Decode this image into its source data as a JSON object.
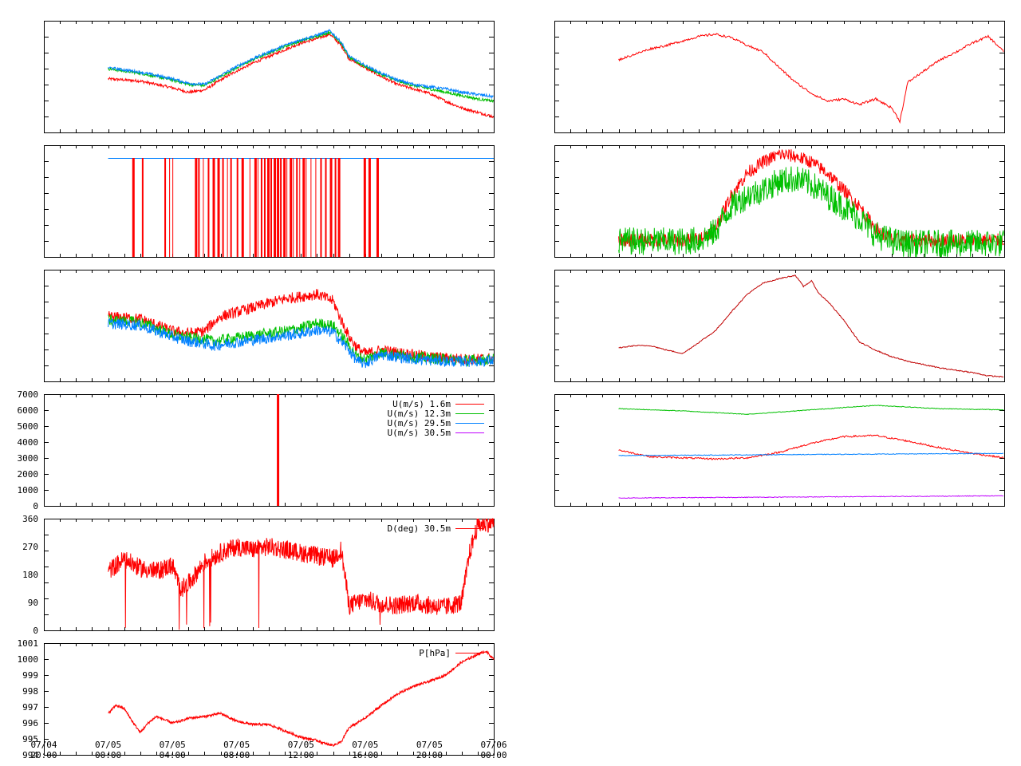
{
  "x_axis": {
    "tick_labels": [
      [
        "07/04",
        "20:00"
      ],
      [
        "07/05",
        "00:00"
      ],
      [
        "07/05",
        "04:00"
      ],
      [
        "07/05",
        "08:00"
      ],
      [
        "07/05",
        "12:00"
      ],
      [
        "07/05",
        "16:00"
      ],
      [
        "07/05",
        "20:00"
      ],
      [
        "07/06",
        "00:00"
      ]
    ]
  },
  "colors": {
    "red": "#ff0000",
    "green": "#00c000",
    "blue": "#0080ff",
    "purple": "#c000ff",
    "darkred": "#c00000",
    "background": "#ffffff",
    "frame": "#000000"
  },
  "chart_data": [
    {
      "panel": "left-1",
      "type": "line",
      "series": [
        {
          "color": "red",
          "t": [
            0,
            2,
            4,
            5,
            6,
            7,
            8,
            9,
            10,
            11,
            12,
            13,
            13.8,
            14.5,
            15,
            16,
            17,
            18,
            19,
            20,
            21,
            22,
            23,
            24
          ],
          "v": [
            0.48,
            0.46,
            0.4,
            0.36,
            0.38,
            0.47,
            0.55,
            0.62,
            0.68,
            0.74,
            0.8,
            0.84,
            0.88,
            0.78,
            0.66,
            0.58,
            0.5,
            0.43,
            0.39,
            0.35,
            0.28,
            0.22,
            0.18,
            0.14
          ]
        },
        {
          "color": "green",
          "t": [
            0,
            2,
            4,
            5,
            6,
            7,
            8,
            9,
            10,
            11,
            12,
            13,
            13.8,
            14.5,
            15,
            16,
            17,
            18,
            19,
            20,
            21,
            22,
            23,
            24
          ],
          "v": [
            0.57,
            0.53,
            0.47,
            0.43,
            0.42,
            0.5,
            0.58,
            0.65,
            0.71,
            0.77,
            0.82,
            0.86,
            0.9,
            0.8,
            0.67,
            0.59,
            0.52,
            0.46,
            0.42,
            0.39,
            0.36,
            0.33,
            0.3,
            0.28
          ]
        },
        {
          "color": "blue",
          "t": [
            0,
            2,
            4,
            5,
            6,
            7,
            8,
            9,
            10,
            11,
            12,
            13,
            13.8,
            14.5,
            15,
            16,
            17,
            18,
            19,
            20,
            21,
            22,
            23,
            24
          ],
          "v": [
            0.58,
            0.54,
            0.48,
            0.44,
            0.43,
            0.51,
            0.59,
            0.66,
            0.72,
            0.78,
            0.83,
            0.87,
            0.91,
            0.81,
            0.68,
            0.6,
            0.53,
            0.47,
            0.43,
            0.41,
            0.39,
            0.36,
            0.34,
            0.32
          ]
        }
      ]
    },
    {
      "panel": "left-2",
      "type": "line",
      "note_values": "binary 0/1 signal",
      "series": [
        {
          "color": "blue",
          "t": [
            0,
            24
          ],
          "v": [
            1,
            1
          ]
        },
        {
          "color": "red",
          "drops_at_hours": [
            1.5,
            2.1,
            3.5,
            3.8,
            4.0,
            5.4,
            5.6,
            5.9,
            6.2,
            6.5,
            6.8,
            7.1,
            7.4,
            7.6,
            8.0,
            8.3,
            8.8,
            9.1,
            9.3,
            9.5,
            9.7,
            9.9,
            10.1,
            10.3,
            10.5,
            10.7,
            10.9,
            11.1,
            11.3,
            11.5,
            11.7,
            11.9,
            12.1,
            12.3,
            12.6,
            12.9,
            13.2,
            13.5,
            13.8,
            14.1,
            14.3,
            15.9,
            16.2,
            16.7
          ]
        }
      ]
    },
    {
      "panel": "left-3",
      "type": "line",
      "series": [
        {
          "color": "red",
          "t": [
            0,
            2,
            4,
            5,
            6,
            6.5,
            7,
            8,
            9,
            10,
            11,
            12,
            13,
            14,
            14.5,
            15,
            15.5,
            16,
            17,
            18,
            19,
            20,
            21,
            22,
            23,
            24
          ],
          "v": [
            0.58,
            0.56,
            0.45,
            0.43,
            0.45,
            0.52,
            0.58,
            0.62,
            0.66,
            0.7,
            0.74,
            0.76,
            0.78,
            0.72,
            0.55,
            0.4,
            0.3,
            0.25,
            0.28,
            0.26,
            0.24,
            0.22,
            0.21,
            0.2,
            0.2,
            0.21
          ]
        },
        {
          "color": "green",
          "t": [
            0,
            2,
            4,
            5,
            6,
            6.5,
            7,
            8,
            9,
            10,
            11,
            12,
            13,
            14,
            14.5,
            15,
            15.5,
            16,
            17,
            18,
            19,
            20,
            21,
            22,
            23,
            24
          ],
          "v": [
            0.55,
            0.53,
            0.42,
            0.39,
            0.38,
            0.36,
            0.37,
            0.39,
            0.41,
            0.43,
            0.45,
            0.48,
            0.52,
            0.5,
            0.42,
            0.32,
            0.22,
            0.2,
            0.26,
            0.24,
            0.22,
            0.21,
            0.2,
            0.19,
            0.19,
            0.2
          ]
        },
        {
          "color": "blue",
          "t": [
            0,
            2,
            4,
            5,
            6,
            6.5,
            7,
            8,
            9,
            10,
            11,
            12,
            13,
            14,
            14.5,
            15,
            15.5,
            16,
            17,
            18,
            19,
            20,
            21,
            22,
            23,
            24
          ],
          "v": [
            0.52,
            0.5,
            0.4,
            0.36,
            0.34,
            0.32,
            0.33,
            0.35,
            0.37,
            0.39,
            0.41,
            0.43,
            0.46,
            0.44,
            0.36,
            0.28,
            0.18,
            0.16,
            0.24,
            0.22,
            0.2,
            0.19,
            0.18,
            0.18,
            0.18,
            0.19
          ]
        }
      ]
    },
    {
      "panel": "left-4",
      "type": "line",
      "yticks": [
        "0",
        "1000",
        "2000",
        "3000",
        "4000",
        "5000",
        "6000",
        "7000"
      ],
      "ylim": [
        0,
        7000
      ],
      "legend": [
        {
          "label": "U(m/s)  1.6m",
          "color": "red"
        },
        {
          "label": "U(m/s) 12.3m",
          "color": "green"
        },
        {
          "label": "U(m/s) 29.5m",
          "color": "blue"
        },
        {
          "label": "U(m/s) 30.5m",
          "color": "purple"
        }
      ],
      "legend_position": "top-right",
      "spike": {
        "t": 10.5,
        "v": 7000,
        "color": "red"
      }
    },
    {
      "panel": "left-5",
      "type": "line",
      "yticks": [
        "0",
        "90",
        "180",
        "270",
        "360"
      ],
      "ylim": [
        0,
        360
      ],
      "legend": [
        {
          "label": "D(deg)  30.5m",
          "color": "red"
        }
      ],
      "legend_position": "top-right",
      "series": [
        {
          "color": "red",
          "t": [
            0,
            1,
            2,
            3,
            4,
            4.5,
            5,
            6,
            7,
            8,
            9,
            10,
            11,
            12,
            13,
            14,
            14.5,
            15,
            16,
            17,
            18,
            19,
            20,
            21,
            22,
            22.5,
            23,
            24
          ],
          "v": [
            190,
            230,
            200,
            190,
            210,
            130,
            150,
            220,
            250,
            270,
            260,
            270,
            260,
            250,
            240,
            230,
            260,
            80,
            100,
            85,
            80,
            90,
            80,
            75,
            90,
            250,
            340,
            350
          ]
        }
      ]
    },
    {
      "panel": "left-6",
      "type": "line",
      "yticks": [
        "994",
        "995",
        "996",
        "997",
        "998",
        "999",
        "1000",
        "1001"
      ],
      "ylim": [
        994,
        1001
      ],
      "legend": [
        {
          "label": "P[hPa]",
          "color": "red"
        }
      ],
      "legend_position": "top-right",
      "series": [
        {
          "color": "red",
          "t": [
            0,
            0.5,
            1,
            1.5,
            2,
            2.5,
            3,
            3.5,
            4,
            4.5,
            5,
            6,
            7,
            8,
            9,
            10,
            11,
            12,
            13,
            13.5,
            14,
            14.5,
            15,
            16,
            17,
            18,
            19,
            20,
            21,
            22,
            23,
            23.5,
            24
          ],
          "v": [
            996.6,
            997.1,
            996.9,
            996.1,
            995.4,
            996.0,
            996.4,
            996.2,
            996.0,
            996.1,
            996.3,
            996.4,
            996.6,
            996.1,
            995.9,
            995.9,
            995.5,
            995.1,
            994.9,
            994.7,
            994.6,
            994.8,
            995.7,
            996.3,
            997.1,
            997.8,
            998.3,
            998.6,
            999.0,
            999.8,
            1000.3,
            1000.5,
            1000.0
          ]
        }
      ]
    },
    {
      "panel": "right-1",
      "type": "line",
      "series": [
        {
          "color": "red",
          "t": [
            0,
            1,
            2,
            3,
            4,
            5,
            6,
            7,
            8,
            9,
            10,
            11,
            12,
            13,
            14,
            15,
            16,
            17,
            17.5,
            18,
            19,
            20,
            21,
            22,
            23,
            24
          ],
          "v": [
            0.65,
            0.7,
            0.75,
            0.78,
            0.82,
            0.86,
            0.88,
            0.85,
            0.78,
            0.72,
            0.58,
            0.45,
            0.35,
            0.28,
            0.3,
            0.25,
            0.3,
            0.22,
            0.1,
            0.45,
            0.55,
            0.65,
            0.72,
            0.8,
            0.86,
            0.72
          ]
        }
      ]
    },
    {
      "panel": "right-2",
      "type": "line",
      "series": [
        {
          "color": "red",
          "t": [
            0,
            4,
            5,
            6,
            6.5,
            7,
            8,
            9,
            10,
            11,
            12,
            13,
            14,
            15,
            16,
            17,
            18,
            24
          ],
          "v": [
            0.15,
            0.15,
            0.16,
            0.25,
            0.4,
            0.55,
            0.75,
            0.85,
            0.92,
            0.9,
            0.85,
            0.75,
            0.6,
            0.45,
            0.25,
            0.16,
            0.15,
            0.15
          ]
        },
        {
          "color": "green",
          "t": [
            0,
            4,
            5,
            6,
            6.5,
            7,
            8,
            9,
            10,
            11,
            12,
            13,
            14,
            15,
            16,
            17,
            18,
            24
          ],
          "v": [
            0.14,
            0.14,
            0.15,
            0.22,
            0.35,
            0.45,
            0.55,
            0.6,
            0.68,
            0.7,
            0.65,
            0.55,
            0.45,
            0.35,
            0.2,
            0.14,
            0.12,
            0.12
          ]
        }
      ]
    },
    {
      "panel": "right-3",
      "type": "line",
      "series": [
        {
          "color": "darkred",
          "t": [
            0,
            1,
            2,
            3,
            4,
            5,
            6,
            7,
            8,
            9,
            10,
            11,
            11.5,
            12,
            12.5,
            13,
            14,
            15,
            16,
            17,
            18,
            19,
            20,
            21,
            22,
            23,
            24
          ],
          "v": [
            0.3,
            0.32,
            0.32,
            0.28,
            0.25,
            0.35,
            0.45,
            0.62,
            0.78,
            0.88,
            0.92,
            0.95,
            0.85,
            0.9,
            0.78,
            0.72,
            0.55,
            0.35,
            0.28,
            0.22,
            0.18,
            0.15,
            0.12,
            0.1,
            0.08,
            0.05,
            0.04
          ]
        }
      ]
    },
    {
      "panel": "right-4",
      "type": "line",
      "series": [
        {
          "color": "green",
          "t": [
            0,
            4,
            8,
            12,
            16,
            20,
            24
          ],
          "v": [
            0.87,
            0.85,
            0.82,
            0.86,
            0.9,
            0.87,
            0.86
          ]
        },
        {
          "color": "red",
          "t": [
            0,
            2,
            4,
            6,
            8,
            10,
            12,
            14,
            16,
            18,
            20,
            22,
            24
          ],
          "v": [
            0.5,
            0.44,
            0.43,
            0.42,
            0.43,
            0.48,
            0.56,
            0.62,
            0.63,
            0.58,
            0.52,
            0.47,
            0.43
          ]
        },
        {
          "color": "blue",
          "t": [
            0,
            24
          ],
          "v": [
            0.45,
            0.47
          ]
        },
        {
          "color": "purple",
          "t": [
            0,
            24
          ],
          "v": [
            0.07,
            0.09
          ]
        }
      ]
    }
  ]
}
